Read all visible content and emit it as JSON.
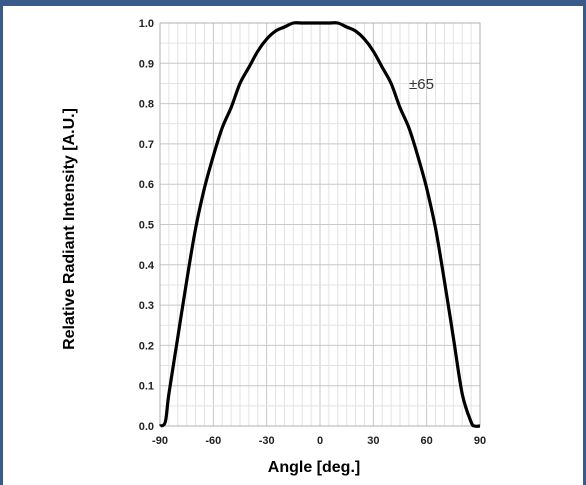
{
  "chart_data": {
    "type": "line",
    "xlabel": "Angle [deg.]",
    "ylabel": "Relative Radiant Intensity [A.U.]",
    "xlim": [
      -90,
      90
    ],
    "ylim": [
      0,
      1.0
    ],
    "xticks": [
      -90,
      -60,
      -30,
      0,
      30,
      60,
      90
    ],
    "xtick_labels": [
      "-90",
      "-60",
      "-30",
      "0",
      "30",
      "60",
      "90"
    ],
    "yticks": [
      0,
      0.1,
      0.2,
      0.3,
      0.4,
      0.5,
      0.6,
      0.7,
      0.8,
      0.9,
      1.0
    ],
    "ytick_labels": [
      "0.0",
      "0.1",
      "0.2",
      "0.3",
      "0.4",
      "0.5",
      "0.6",
      "0.7",
      "0.8",
      "0.9",
      "1.0"
    ],
    "grid": true,
    "annotation": "±65",
    "series": [
      {
        "x": [
          -90,
          -87,
          -85,
          -80,
          -75,
          -70,
          -65,
          -60,
          -55,
          -50,
          -45,
          -40,
          -35,
          -30,
          -25,
          -20,
          -15,
          -10,
          -5,
          0,
          5,
          10,
          15,
          20,
          25,
          30,
          35,
          40,
          45,
          50,
          55,
          60,
          65,
          70,
          75,
          80,
          85,
          87,
          90
        ],
        "y": [
          0.0,
          0.01,
          0.08,
          0.22,
          0.36,
          0.49,
          0.59,
          0.67,
          0.74,
          0.79,
          0.85,
          0.89,
          0.93,
          0.96,
          0.98,
          0.99,
          1.0,
          1.0,
          1.0,
          1.0,
          1.0,
          1.0,
          0.99,
          0.98,
          0.96,
          0.93,
          0.89,
          0.85,
          0.79,
          0.74,
          0.67,
          0.59,
          0.49,
          0.36,
          0.22,
          0.08,
          0.01,
          0.0,
          0.0
        ]
      }
    ]
  }
}
